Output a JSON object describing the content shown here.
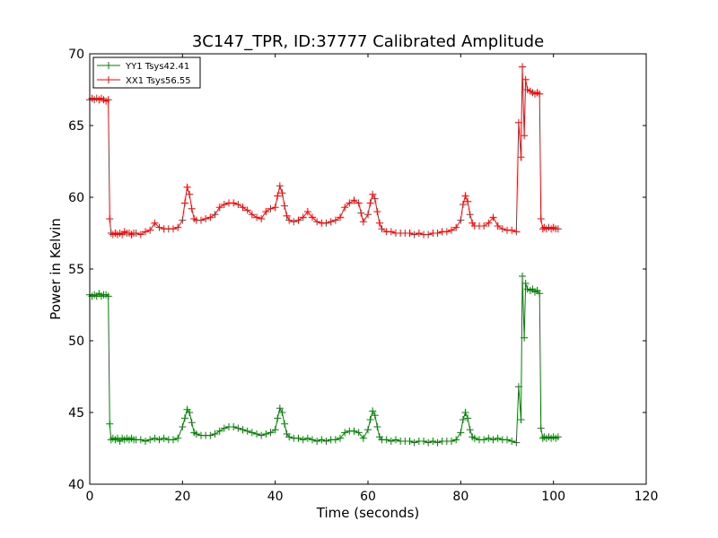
{
  "chart_data": {
    "type": "line",
    "title": "3C147_TPR, ID:37777 Calibrated Amplitude",
    "xlabel": "Time (seconds)",
    "ylabel": "Power in Kelvin",
    "xlim": [
      0,
      120
    ],
    "ylim": [
      40,
      70
    ],
    "xticks": [
      0,
      20,
      40,
      60,
      80,
      100,
      120
    ],
    "yticks": [
      40,
      45,
      50,
      55,
      60,
      65,
      70
    ],
    "grid": false,
    "legend": "top-left",
    "series": [
      {
        "name": "YY1 Tsys42.41",
        "color": "#008000",
        "marker": "plus",
        "points": [
          [
            0,
            53.2
          ],
          [
            0.5,
            53.1
          ],
          [
            1,
            53.2
          ],
          [
            1.5,
            53.1
          ],
          [
            2,
            53.3
          ],
          [
            2.5,
            53.1
          ],
          [
            3,
            53.2
          ],
          [
            3.5,
            53.2
          ],
          [
            4,
            53.1
          ],
          [
            4.3,
            44.2
          ],
          [
            4.6,
            43.1
          ],
          [
            5,
            43.2
          ],
          [
            5.5,
            43.1
          ],
          [
            6,
            43.2
          ],
          [
            6.5,
            43.0
          ],
          [
            7,
            43.2
          ],
          [
            7.5,
            43.1
          ],
          [
            8,
            43.2
          ],
          [
            8.5,
            43.1
          ],
          [
            9,
            43.2
          ],
          [
            9.5,
            43.1
          ],
          [
            10,
            43.1
          ],
          [
            11,
            43.1
          ],
          [
            12,
            43.0
          ],
          [
            13,
            43.1
          ],
          [
            14,
            43.2
          ],
          [
            15,
            43.1
          ],
          [
            16,
            43.2
          ],
          [
            17,
            43.1
          ],
          [
            18,
            43.1
          ],
          [
            19,
            43.2
          ],
          [
            20,
            44.0
          ],
          [
            20.5,
            44.6
          ],
          [
            21,
            45.2
          ],
          [
            21.5,
            45.0
          ],
          [
            22,
            44.3
          ],
          [
            22.5,
            43.6
          ],
          [
            23,
            43.5
          ],
          [
            24,
            43.4
          ],
          [
            25,
            43.4
          ],
          [
            26,
            43.4
          ],
          [
            27,
            43.5
          ],
          [
            28,
            43.7
          ],
          [
            29,
            43.9
          ],
          [
            30,
            44.0
          ],
          [
            31,
            44.0
          ],
          [
            32,
            43.9
          ],
          [
            33,
            43.8
          ],
          [
            34,
            43.7
          ],
          [
            35,
            43.6
          ],
          [
            36,
            43.5
          ],
          [
            37,
            43.4
          ],
          [
            38,
            43.5
          ],
          [
            39,
            43.6
          ],
          [
            40,
            43.8
          ],
          [
            40.5,
            44.6
          ],
          [
            41,
            45.3
          ],
          [
            41.5,
            45.0
          ],
          [
            42,
            44.2
          ],
          [
            42.5,
            43.5
          ],
          [
            43,
            43.3
          ],
          [
            44,
            43.2
          ],
          [
            45,
            43.2
          ],
          [
            46,
            43.1
          ],
          [
            47,
            43.2
          ],
          [
            48,
            43.1
          ],
          [
            49,
            43.0
          ],
          [
            50,
            43.1
          ],
          [
            51,
            43.0
          ],
          [
            52,
            43.1
          ],
          [
            53,
            43.1
          ],
          [
            54,
            43.2
          ],
          [
            55,
            43.6
          ],
          [
            56,
            43.7
          ],
          [
            57,
            43.7
          ],
          [
            58,
            43.6
          ],
          [
            59,
            43.2
          ],
          [
            60,
            43.8
          ],
          [
            60.5,
            44.5
          ],
          [
            61,
            45.1
          ],
          [
            61.5,
            44.8
          ],
          [
            62,
            44.0
          ],
          [
            62.5,
            43.3
          ],
          [
            63,
            43.1
          ],
          [
            64,
            43.1
          ],
          [
            65,
            43.0
          ],
          [
            66,
            43.1
          ],
          [
            67,
            43.0
          ],
          [
            68,
            43.0
          ],
          [
            69,
            43.0
          ],
          [
            70,
            42.9
          ],
          [
            71,
            43.0
          ],
          [
            72,
            43.0
          ],
          [
            73,
            42.9
          ],
          [
            74,
            43.0
          ],
          [
            75,
            42.9
          ],
          [
            76,
            43.0
          ],
          [
            77,
            43.0
          ],
          [
            78,
            43.0
          ],
          [
            79,
            43.1
          ],
          [
            80,
            43.6
          ],
          [
            80.5,
            44.5
          ],
          [
            81,
            45.0
          ],
          [
            81.5,
            44.6
          ],
          [
            82,
            43.8
          ],
          [
            82.5,
            43.3
          ],
          [
            83,
            43.2
          ],
          [
            84,
            43.1
          ],
          [
            85,
            43.1
          ],
          [
            86,
            43.2
          ],
          [
            87,
            43.1
          ],
          [
            88,
            43.2
          ],
          [
            89,
            43.1
          ],
          [
            90,
            43.1
          ],
          [
            91,
            43.0
          ],
          [
            92,
            42.9
          ],
          [
            92.5,
            46.8
          ],
          [
            93,
            44.5
          ],
          [
            93.3,
            54.5
          ],
          [
            93.7,
            50.2
          ],
          [
            94,
            54.0
          ],
          [
            94.4,
            53.6
          ],
          [
            95,
            53.5
          ],
          [
            95.5,
            53.6
          ],
          [
            96,
            53.4
          ],
          [
            96.5,
            53.5
          ],
          [
            97,
            53.3
          ],
          [
            97.3,
            43.9
          ],
          [
            97.7,
            43.2
          ],
          [
            98,
            43.3
          ],
          [
            98.5,
            43.2
          ],
          [
            99,
            43.3
          ],
          [
            99.5,
            43.2
          ],
          [
            100,
            43.3
          ],
          [
            100.5,
            43.2
          ],
          [
            101,
            43.3
          ]
        ]
      },
      {
        "name": "XX1 Tsys56.55",
        "color": "#ff0000",
        "marker": "plus",
        "points": [
          [
            0,
            66.8
          ],
          [
            0.5,
            66.9
          ],
          [
            1,
            66.8
          ],
          [
            1.5,
            66.9
          ],
          [
            2,
            66.8
          ],
          [
            2.5,
            66.9
          ],
          [
            3,
            66.8
          ],
          [
            3.5,
            66.7
          ],
          [
            4,
            66.8
          ],
          [
            4.3,
            58.5
          ],
          [
            4.6,
            57.5
          ],
          [
            5,
            57.4
          ],
          [
            5.5,
            57.5
          ],
          [
            6,
            57.4
          ],
          [
            6.5,
            57.5
          ],
          [
            7,
            57.4
          ],
          [
            7.5,
            57.6
          ],
          [
            8,
            57.5
          ],
          [
            8.5,
            57.5
          ],
          [
            9,
            57.4
          ],
          [
            9.5,
            57.5
          ],
          [
            10,
            57.5
          ],
          [
            11,
            57.4
          ],
          [
            12,
            57.6
          ],
          [
            13,
            57.7
          ],
          [
            14,
            58.2
          ],
          [
            15,
            57.9
          ],
          [
            16,
            57.8
          ],
          [
            17,
            57.8
          ],
          [
            18,
            57.8
          ],
          [
            19,
            57.9
          ],
          [
            20,
            58.4
          ],
          [
            20.5,
            59.6
          ],
          [
            21,
            60.7
          ],
          [
            21.5,
            60.2
          ],
          [
            22,
            59.2
          ],
          [
            22.5,
            58.5
          ],
          [
            23,
            58.4
          ],
          [
            24,
            58.4
          ],
          [
            25,
            58.5
          ],
          [
            26,
            58.6
          ],
          [
            27,
            58.8
          ],
          [
            28,
            59.3
          ],
          [
            29,
            59.5
          ],
          [
            30,
            59.6
          ],
          [
            31,
            59.6
          ],
          [
            32,
            59.5
          ],
          [
            33,
            59.3
          ],
          [
            34,
            59.1
          ],
          [
            35,
            58.8
          ],
          [
            36,
            58.6
          ],
          [
            37,
            58.5
          ],
          [
            38,
            59.0
          ],
          [
            39,
            59.2
          ],
          [
            40,
            59.3
          ],
          [
            40.5,
            60.1
          ],
          [
            41,
            60.8
          ],
          [
            41.5,
            60.3
          ],
          [
            42,
            59.4
          ],
          [
            42.5,
            58.7
          ],
          [
            43,
            58.4
          ],
          [
            44,
            58.3
          ],
          [
            45,
            58.4
          ],
          [
            46,
            58.6
          ],
          [
            47,
            59.0
          ],
          [
            48,
            58.6
          ],
          [
            49,
            58.3
          ],
          [
            50,
            58.2
          ],
          [
            51,
            58.2
          ],
          [
            52,
            58.3
          ],
          [
            53,
            58.4
          ],
          [
            54,
            58.6
          ],
          [
            55,
            59.3
          ],
          [
            56,
            59.6
          ],
          [
            57,
            59.8
          ],
          [
            58,
            59.6
          ],
          [
            58.5,
            58.9
          ],
          [
            59,
            58.3
          ],
          [
            60,
            58.8
          ],
          [
            60.5,
            59.6
          ],
          [
            61,
            60.2
          ],
          [
            61.5,
            59.9
          ],
          [
            62,
            59.0
          ],
          [
            62.5,
            58.2
          ],
          [
            63,
            57.8
          ],
          [
            64,
            57.6
          ],
          [
            65,
            57.6
          ],
          [
            66,
            57.5
          ],
          [
            67,
            57.5
          ],
          [
            68,
            57.5
          ],
          [
            69,
            57.5
          ],
          [
            70,
            57.4
          ],
          [
            71,
            57.5
          ],
          [
            72,
            57.4
          ],
          [
            73,
            57.4
          ],
          [
            74,
            57.5
          ],
          [
            75,
            57.5
          ],
          [
            76,
            57.6
          ],
          [
            77,
            57.6
          ],
          [
            78,
            57.7
          ],
          [
            79,
            57.9
          ],
          [
            80,
            58.4
          ],
          [
            80.5,
            59.5
          ],
          [
            81,
            60.1
          ],
          [
            81.5,
            59.7
          ],
          [
            82,
            58.8
          ],
          [
            82.5,
            58.2
          ],
          [
            83,
            58.0
          ],
          [
            84,
            58.0
          ],
          [
            85,
            58.0
          ],
          [
            86,
            58.2
          ],
          [
            87,
            58.6
          ],
          [
            88,
            58.0
          ],
          [
            89,
            57.8
          ],
          [
            90,
            57.7
          ],
          [
            91,
            57.7
          ],
          [
            92,
            57.6
          ],
          [
            92.5,
            65.2
          ],
          [
            93,
            62.8
          ],
          [
            93.3,
            69.1
          ],
          [
            93.7,
            64.3
          ],
          [
            94,
            68.2
          ],
          [
            94.4,
            67.5
          ],
          [
            95,
            67.4
          ],
          [
            95.5,
            67.3
          ],
          [
            96,
            67.2
          ],
          [
            96.5,
            67.3
          ],
          [
            97,
            67.2
          ],
          [
            97.3,
            58.5
          ],
          [
            97.7,
            57.8
          ],
          [
            98,
            57.9
          ],
          [
            98.5,
            57.8
          ],
          [
            99,
            57.9
          ],
          [
            99.5,
            57.8
          ],
          [
            100,
            57.9
          ],
          [
            100.5,
            57.8
          ],
          [
            101,
            57.8
          ]
        ]
      }
    ]
  }
}
